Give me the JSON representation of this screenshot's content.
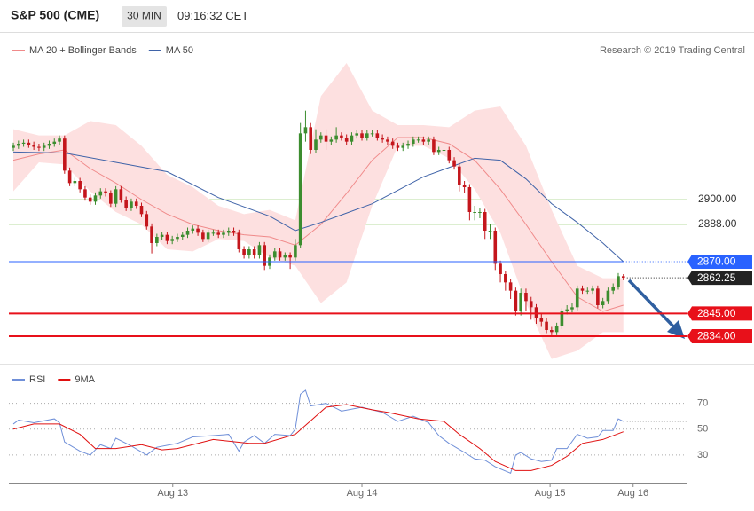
{
  "header": {
    "title": "S&P 500 (CME)",
    "interval": "30 MIN",
    "time": "09:16:32 CET"
  },
  "chart_data": [
    {
      "type": "candlestick",
      "source": "Research © 2019 Trading Central",
      "xlim": [
        -0.87,
        131.5
      ],
      "ylim": [
        2822,
        2975
      ],
      "yticks": [
        {
          "value": 2900,
          "label": "2900.00"
        },
        {
          "value": 2888,
          "label": "2888.00"
        }
      ],
      "grid_color": "#b9dca2",
      "up_color": "#3c8d2f",
      "down_color": "#c4161c",
      "open": [
        2925,
        2926,
        2927,
        2927.5,
        2926.5,
        2925.5,
        2925,
        2926,
        2927,
        2928,
        2929.5,
        2914,
        2908,
        2909,
        2905,
        2901,
        2899,
        2902,
        2904,
        2903,
        2898,
        2905,
        2900,
        2896,
        2899,
        2897,
        2893,
        2887,
        2879,
        2882,
        2883,
        2880,
        2881,
        2882,
        2883,
        2885,
        2886,
        2884,
        2881,
        2884,
        2884,
        2883,
        2884,
        2885,
        2884,
        2876,
        2873,
        2876,
        2873,
        2878,
        2868,
        2872,
        2875,
        2872,
        2873,
        2872,
        2878,
        2932,
        2935,
        2924,
        2929,
        2931,
        2928,
        2929,
        2931,
        2930,
        2928,
        2931,
        2932,
        2930,
        2932,
        2932,
        2930,
        2929,
        2928,
        2926,
        2925,
        2926,
        2927,
        2929,
        2929,
        2928,
        2929,
        2923,
        2924,
        2924,
        2919,
        2916,
        2907,
        2906,
        2894,
        2894,
        2894,
        2885,
        2885,
        2869,
        2864,
        2860,
        2856,
        2846,
        2855,
        2851,
        2848,
        2843,
        2841,
        2837,
        2836,
        2839,
        2846,
        2847,
        2848,
        2857,
        2856,
        2856,
        2857,
        2849,
        2851,
        2856,
        2858,
        2863
      ],
      "high": [
        2927.5,
        2928.5,
        2929,
        2929,
        2928,
        2927,
        2927.5,
        2928.5,
        2929.5,
        2931,
        2931,
        2915.5,
        2910.5,
        2910.5,
        2906.5,
        2902.5,
        2903.5,
        2905.5,
        2905.5,
        2904.5,
        2906.5,
        2906.5,
        2901.5,
        2900.5,
        2900.5,
        2898.5,
        2894.5,
        2888.5,
        2883.5,
        2884.5,
        2884.5,
        2882.5,
        2883.5,
        2884.5,
        2886.5,
        2887.5,
        2887.5,
        2885.5,
        2885.5,
        2885.5,
        2885.5,
        2885.5,
        2886.5,
        2886.5,
        2885.5,
        2877.5,
        2877.5,
        2877.5,
        2879.5,
        2879.5,
        2873.5,
        2876.5,
        2876.5,
        2874.5,
        2874.5,
        2881,
        2937,
        2943,
        2937,
        2934,
        2932.5,
        2934,
        2930.5,
        2935,
        2932.5,
        2931.5,
        2932.5,
        2933.5,
        2933.5,
        2933.5,
        2933.5,
        2933.5,
        2931.5,
        2930.5,
        2929.5,
        2927.5,
        2927.5,
        2928.5,
        2930.5,
        2930.5,
        2930.5,
        2930.5,
        2930.5,
        2925.5,
        2925.5,
        2925.5,
        2920.5,
        2917.5,
        2909,
        2907.5,
        2897,
        2896,
        2895.5,
        2888,
        2886.5,
        2870.5,
        2865.5,
        2861.5,
        2857.5,
        2857,
        2857,
        2853,
        2849.5,
        2845,
        2843,
        2838.5,
        2840.5,
        2847.5,
        2849,
        2850,
        2858.5,
        2858.5,
        2857.5,
        2858.5,
        2858.5,
        2852.5,
        2857.5,
        2859.5,
        2864.5,
        2864
      ],
      "low": [
        2923.5,
        2924.5,
        2925.5,
        2925,
        2924,
        2923.5,
        2923.5,
        2924.5,
        2925.5,
        2926.5,
        2912.5,
        2906.5,
        2906.5,
        2903.5,
        2899.5,
        2897.5,
        2897.5,
        2900.5,
        2901.5,
        2896.5,
        2896.5,
        2898.5,
        2894.5,
        2894.5,
        2895.5,
        2891.5,
        2885.5,
        2874,
        2877.5,
        2880.5,
        2878.5,
        2878.5,
        2879.5,
        2880.5,
        2881.5,
        2883.5,
        2882.5,
        2879.5,
        2879.5,
        2882.5,
        2881.5,
        2881.5,
        2882.5,
        2882.5,
        2874.5,
        2871.5,
        2871.5,
        2871.5,
        2871.5,
        2866,
        2866.5,
        2870.5,
        2870.5,
        2870.5,
        2866.5,
        2870.5,
        2876.5,
        2928,
        2922,
        2922.5,
        2927.5,
        2924,
        2926.5,
        2927.5,
        2928.5,
        2926.5,
        2926.5,
        2929.5,
        2928.5,
        2928.5,
        2930.5,
        2928.5,
        2927.5,
        2926.5,
        2924.5,
        2923.5,
        2923.5,
        2924.5,
        2925.5,
        2927.5,
        2926.5,
        2926.5,
        2921.5,
        2921.5,
        2922.5,
        2917.5,
        2914.5,
        2904,
        2903,
        2890,
        2890,
        2891,
        2881,
        2881,
        2866,
        2860,
        2856,
        2852,
        2844,
        2844,
        2846,
        2842,
        2840,
        2838.5,
        2835.5,
        2834.5,
        2834.5,
        2837.5,
        2844.5,
        2845.5,
        2846.5,
        2854.5,
        2854.5,
        2854.5,
        2847.5,
        2847.5,
        2849.5,
        2854.5,
        2856.5,
        2861
      ],
      "close": [
        2926,
        2927,
        2927.5,
        2926.5,
        2925.5,
        2925,
        2926,
        2927,
        2928,
        2929.5,
        2914,
        2908,
        2909,
        2905,
        2901,
        2899,
        2902,
        2904,
        2903,
        2898,
        2905,
        2900,
        2896,
        2899,
        2897,
        2893,
        2887,
        2879,
        2882,
        2883,
        2880,
        2881,
        2882,
        2883,
        2885,
        2886,
        2884,
        2881,
        2884,
        2884,
        2883,
        2884,
        2885,
        2884,
        2876,
        2873,
        2876,
        2873,
        2878,
        2868,
        2872,
        2875,
        2872,
        2873,
        2872,
        2878,
        2932,
        2935,
        2924,
        2929,
        2931,
        2928,
        2929,
        2931,
        2930,
        2928,
        2931,
        2932,
        2930,
        2932,
        2932,
        2930,
        2929,
        2928,
        2926,
        2925,
        2926,
        2927,
        2929,
        2929,
        2928,
        2929,
        2923,
        2924,
        2924,
        2919,
        2916,
        2907,
        2906,
        2894,
        2894,
        2894,
        2885,
        2885,
        2869,
        2864,
        2860,
        2856,
        2846,
        2855,
        2851,
        2848,
        2843,
        2841,
        2837,
        2836,
        2839,
        2846,
        2847,
        2848,
        2857,
        2856,
        2856,
        2857,
        2849,
        2851,
        2856,
        2858,
        2863,
        2862.25
      ],
      "series": [
        {
          "name": "MA 20 + Bollinger Bands",
          "color": "#f08a8a",
          "band_color": "#fde0e0",
          "x": [
            0,
            5,
            10,
            15,
            20,
            25,
            30,
            35,
            40,
            45,
            50,
            55,
            60,
            65,
            70,
            75,
            80,
            85,
            90,
            95,
            100,
            105,
            110,
            115,
            119
          ],
          "values": [
            2919,
            2922,
            2924,
            2915,
            2908,
            2900,
            2893,
            2888,
            2885,
            2883,
            2882,
            2878,
            2888,
            2903,
            2919,
            2930,
            2930,
            2927,
            2919,
            2905,
            2888,
            2870,
            2853,
            2846,
            2849
          ],
          "upper": [
            2934,
            2931,
            2931,
            2938,
            2936,
            2926,
            2912,
            2906,
            2897,
            2893,
            2895,
            2890,
            2950,
            2966,
            2943,
            2936,
            2936,
            2935,
            2943,
            2945,
            2926,
            2895,
            2868,
            2862,
            2862
          ],
          "lower": [
            2904,
            2918,
            2917,
            2904,
            2894,
            2888,
            2876,
            2875,
            2881,
            2880,
            2872,
            2868,
            2850,
            2860,
            2897,
            2926,
            2926,
            2920,
            2905,
            2884,
            2850,
            2823,
            2827,
            2836,
            2836
          ]
        },
        {
          "name": "MA 50",
          "color": "#3f63a8",
          "x": [
            0,
            10,
            20,
            30,
            40,
            50,
            55,
            60,
            70,
            80,
            90,
            95,
            100,
            105,
            110,
            115,
            119
          ],
          "values": [
            2923,
            2922.5,
            2918,
            2913.5,
            2901,
            2892,
            2885,
            2889,
            2898,
            2911,
            2920,
            2919,
            2910,
            2898,
            2889,
            2879,
            2870
          ]
        }
      ],
      "levels": [
        {
          "value": 2870,
          "label": "2870.00",
          "color": "#2962ff",
          "style": "to-last"
        },
        {
          "value": 2862.25,
          "label": "2862.25",
          "color": "#222222",
          "style": "after-last"
        },
        {
          "value": 2845,
          "label": "2845.00",
          "color": "#e8101a",
          "style": "full"
        },
        {
          "value": 2834,
          "label": "2834.00",
          "color": "#e8101a",
          "style": "full"
        }
      ]
    },
    {
      "type": "line",
      "xlim": [
        -0.87,
        131.5
      ],
      "ylim": [
        8,
        80
      ],
      "yticks": [
        30,
        50,
        70
      ],
      "grid": true,
      "last_value_line": true,
      "xticks": [
        {
          "value": 31.1,
          "label": "Aug 13"
        },
        {
          "value": 68,
          "label": "Aug 14"
        },
        {
          "value": 104.7,
          "label": "Aug 15"
        },
        {
          "value": 120.9,
          "label": "Aug 16"
        }
      ],
      "series": [
        {
          "name": "RSI",
          "color": "#6f8fd8",
          "x": [
            0,
            1,
            4,
            8,
            9,
            10,
            13,
            15,
            16,
            17,
            19,
            20,
            23,
            26,
            28,
            32,
            35,
            39,
            42,
            44,
            45,
            47,
            49,
            51,
            54,
            55,
            56,
            57,
            58,
            61,
            64,
            68,
            72,
            75,
            78,
            81,
            83,
            85,
            88,
            90,
            92,
            94,
            97,
            98,
            99,
            101,
            103,
            105,
            106,
            108,
            110,
            112,
            114,
            115,
            117,
            118,
            119
          ],
          "values": [
            54,
            57,
            55,
            58,
            55,
            40,
            33,
            30,
            34,
            38,
            35,
            43,
            37,
            30,
            36,
            39,
            44,
            45,
            46,
            33,
            40,
            45,
            39,
            46,
            45,
            50,
            77,
            80,
            68,
            70,
            64,
            67,
            63,
            56,
            60,
            55,
            45,
            39,
            32,
            27,
            26,
            21,
            16,
            30,
            32,
            27,
            25,
            26,
            35,
            35,
            46,
            43,
            44,
            49,
            49,
            58,
            56
          ]
        },
        {
          "name": "9MA",
          "color": "#e01010",
          "x": [
            0,
            4,
            9,
            13,
            16,
            20,
            25,
            29,
            32,
            39,
            46,
            49,
            55,
            57,
            61,
            65,
            70,
            73,
            79,
            84,
            87,
            91,
            94,
            98,
            101,
            105,
            108,
            111,
            115,
            119
          ],
          "values": [
            50,
            54,
            54,
            46,
            35,
            35,
            38,
            34,
            35,
            42,
            39,
            39,
            46,
            53,
            67,
            69,
            65,
            63,
            58,
            56,
            46,
            35,
            25,
            18,
            18,
            22,
            29,
            39,
            42,
            48
          ]
        }
      ]
    }
  ]
}
